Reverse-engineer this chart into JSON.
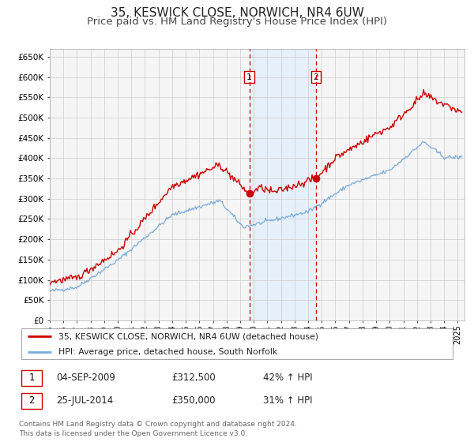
{
  "title": "35, KESWICK CLOSE, NORWICH, NR4 6UW",
  "subtitle": "Price paid vs. HM Land Registry's House Price Index (HPI)",
  "ylim": [
    0,
    670000
  ],
  "yticks": [
    0,
    50000,
    100000,
    150000,
    200000,
    250000,
    300000,
    350000,
    400000,
    450000,
    500000,
    550000,
    600000,
    650000
  ],
  "ytick_labels": [
    "£0",
    "£50K",
    "£100K",
    "£150K",
    "£200K",
    "£250K",
    "£300K",
    "£350K",
    "£400K",
    "£450K",
    "£500K",
    "£550K",
    "£600K",
    "£650K"
  ],
  "xlim_start": 1995.0,
  "xlim_end": 2025.5,
  "xtick_years": [
    1995,
    1996,
    1997,
    1998,
    1999,
    2000,
    2001,
    2002,
    2003,
    2004,
    2005,
    2006,
    2007,
    2008,
    2009,
    2010,
    2011,
    2012,
    2013,
    2014,
    2015,
    2016,
    2017,
    2018,
    2019,
    2020,
    2021,
    2022,
    2023,
    2024,
    2025
  ],
  "sale1_x": 2009.67,
  "sale1_y": 312500,
  "sale1_label": "1",
  "sale1_date": "04-SEP-2009",
  "sale1_price": "£312,500",
  "sale1_hpi": "42% ↑ HPI",
  "sale2_x": 2014.56,
  "sale2_y": 350000,
  "sale2_label": "2",
  "sale2_date": "25-JUL-2014",
  "sale2_price": "£350,000",
  "sale2_hpi": "31% ↑ HPI",
  "red_line_color": "#cc0000",
  "blue_line_color": "#7aabda",
  "shade_color": "#ddeeff",
  "grid_color": "#cccccc",
  "background_color": "#f5f5f5",
  "legend_label_red": "35, KESWICK CLOSE, NORWICH, NR4 6UW (detached house)",
  "legend_label_blue": "HPI: Average price, detached house, South Norfolk",
  "footer_text": "Contains HM Land Registry data © Crown copyright and database right 2024.\nThis data is licensed under the Open Government Licence v3.0.",
  "title_fontsize": 11,
  "subtitle_fontsize": 9.5
}
